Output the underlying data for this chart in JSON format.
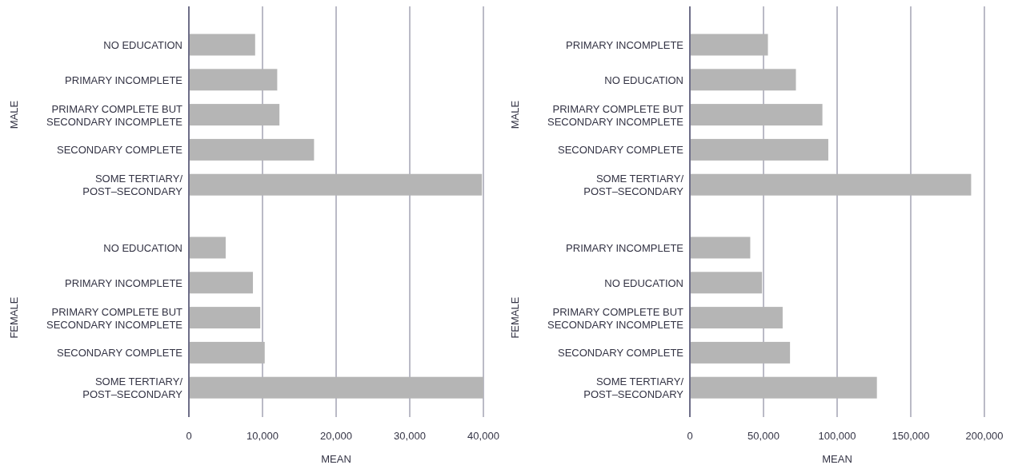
{
  "chart_data": [
    {
      "type": "bar",
      "orientation": "horizontal",
      "categories": [
        "NO EDUCATION",
        "PRIMARY INCOMPLETE",
        "PRIMARY COMPLETE BUT SECONDARY INCOMPLETE",
        "SECONDARY COMPLETE",
        "SOME TERTIARY/ POST–SECONDARY",
        "NO EDUCATION",
        "PRIMARY INCOMPLETE",
        "PRIMARY COMPLETE BUT SECONDARY INCOMPLETE",
        "SECONDARY COMPLETE",
        "SOME TERTIARY/ POST–SECONDARY"
      ],
      "values": [
        9000,
        12000,
        12300,
        17000,
        39800,
        5000,
        8700,
        9700,
        10300,
        40000
      ],
      "color": "#b5b5b5",
      "xlim": [
        0,
        40000
      ],
      "xticks": [
        {
          "value": 0,
          "label": "0"
        },
        {
          "value": 10000,
          "label": "10,000"
        },
        {
          "value": 20000,
          "label": "20,000"
        },
        {
          "value": 30000,
          "label": "30,000"
        },
        {
          "value": 40000,
          "label": "40,000"
        }
      ],
      "xlabel": "MEAN",
      "grid": "x",
      "annotations": [
        "MALE",
        "FEMALE"
      ]
    },
    {
      "type": "bar",
      "orientation": "horizontal",
      "categories": [
        "PRIMARY INCOMPLETE",
        "NO EDUCATION",
        "PRIMARY COMPLETE BUT SECONDARY INCOMPLETE",
        "SECONDARY COMPLETE",
        "SOME TERTIARY/ POST–SECONDARY",
        "PRIMARY INCOMPLETE",
        "NO EDUCATION",
        "PRIMARY COMPLETE BUT SECONDARY INCOMPLETE",
        "SECONDARY COMPLETE",
        "SOME TERTIARY/ POST–SECONDARY"
      ],
      "values": [
        53000,
        72000,
        90000,
        94000,
        191000,
        41000,
        49000,
        63000,
        68000,
        127000
      ],
      "color": "#b5b5b5",
      "xlim": [
        0,
        200000
      ],
      "xticks": [
        {
          "value": 0,
          "label": "0"
        },
        {
          "value": 50000,
          "label": "50,000"
        },
        {
          "value": 100000,
          "label": "100,000"
        },
        {
          "value": 150000,
          "label": "150,000"
        },
        {
          "value": 200000,
          "label": "200,000"
        }
      ],
      "xlabel": "MEAN",
      "grid": "x",
      "annotations": [
        "MALE",
        "FEMALE"
      ]
    }
  ]
}
